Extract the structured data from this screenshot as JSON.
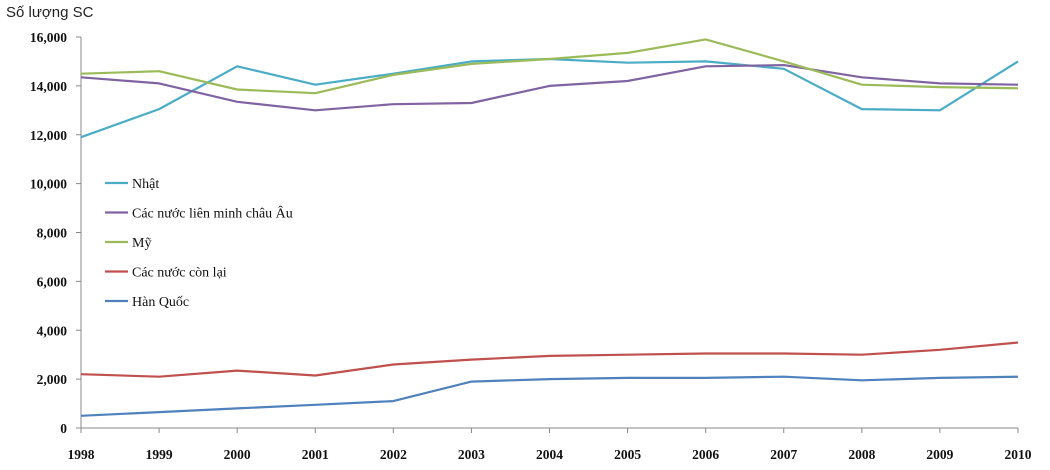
{
  "chart_data": {
    "type": "line",
    "title": "",
    "xlabel": "",
    "ylabel": "Số lượng SC",
    "ylim": [
      0,
      16000
    ],
    "yticks": [
      0,
      2000,
      4000,
      6000,
      8000,
      10000,
      12000,
      14000,
      16000
    ],
    "ytick_labels": [
      "0",
      "2,000",
      "4,000",
      "6,000",
      "8,000",
      "10,000",
      "12,000",
      "14,000",
      "16,000"
    ],
    "x": [
      "1998",
      "1999",
      "2000",
      "2001",
      "2002",
      "2003",
      "2004",
      "2005",
      "2006",
      "2007",
      "2008",
      "2009",
      "2010"
    ],
    "grid": false,
    "legend_position": "left",
    "series": [
      {
        "name": "Nhật",
        "color": "#4bacc6",
        "values": [
          11900,
          13050,
          14800,
          14050,
          14500,
          15000,
          15100,
          14950,
          15000,
          14700,
          13050,
          13000,
          15000
        ]
      },
      {
        "name": "Các nước liên minh châu Âu",
        "color": "#8064a2",
        "values": [
          14350,
          14100,
          13350,
          13000,
          13250,
          13300,
          14000,
          14200,
          14800,
          14850,
          14350,
          14100,
          14050
        ]
      },
      {
        "name": "Mỹ",
        "color": "#9bbb59",
        "values": [
          14500,
          14600,
          13850,
          13700,
          14450,
          14900,
          15100,
          15350,
          15900,
          15000,
          14050,
          13950,
          13900
        ]
      },
      {
        "name": "Các nước còn lại",
        "color": "#c0504d",
        "values": [
          2200,
          2100,
          2350,
          2150,
          2600,
          2800,
          2950,
          3000,
          3050,
          3050,
          3000,
          3200,
          3500
        ]
      },
      {
        "name": "Hàn Quốc",
        "color": "#4f81bd",
        "values": [
          500,
          650,
          800,
          950,
          1100,
          1900,
          2000,
          2050,
          2050,
          2100,
          1950,
          2050,
          2100
        ]
      }
    ]
  }
}
